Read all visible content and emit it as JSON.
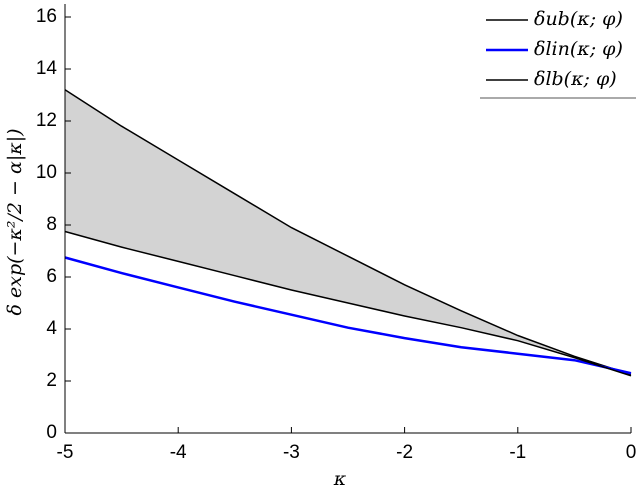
{
  "chart_data": {
    "type": "line",
    "x_label": "κ",
    "y_label": "δ exp(−κ²/2 − α|κ|)",
    "x": [
      -5,
      -4.5,
      -4,
      -3.5,
      -3,
      -2.5,
      -2,
      -1.5,
      -1,
      -0.5,
      0
    ],
    "series": [
      {
        "name": "δub(κ; φ)",
        "color": "#000000",
        "width": 1.5,
        "values": [
          13.2,
          11.8,
          10.5,
          9.2,
          7.9,
          6.8,
          5.7,
          4.7,
          3.75,
          2.95,
          2.25
        ]
      },
      {
        "name": "δlin(κ; φ)",
        "color": "#0000ff",
        "width": 2.5,
        "values": [
          6.75,
          6.15,
          5.6,
          5.05,
          4.55,
          4.05,
          3.65,
          3.3,
          3.05,
          2.8,
          2.3
        ]
      },
      {
        "name": "δlb(κ; φ)",
        "color": "#000000",
        "width": 1.5,
        "values": [
          7.75,
          7.15,
          6.6,
          6.05,
          5.5,
          5.0,
          4.5,
          4.05,
          3.55,
          2.9,
          2.2
        ]
      }
    ],
    "fill": {
      "between": [
        0,
        2
      ],
      "color": "#d3d3d3"
    },
    "xlim": [
      -5,
      0
    ],
    "xticks": [
      -5,
      -4,
      -3,
      -2,
      -1,
      0
    ],
    "ylim": [
      0,
      16.5
    ],
    "yticks": [
      0,
      2,
      4,
      6,
      8,
      10,
      12,
      14,
      16
    ],
    "legend": "upper right"
  }
}
